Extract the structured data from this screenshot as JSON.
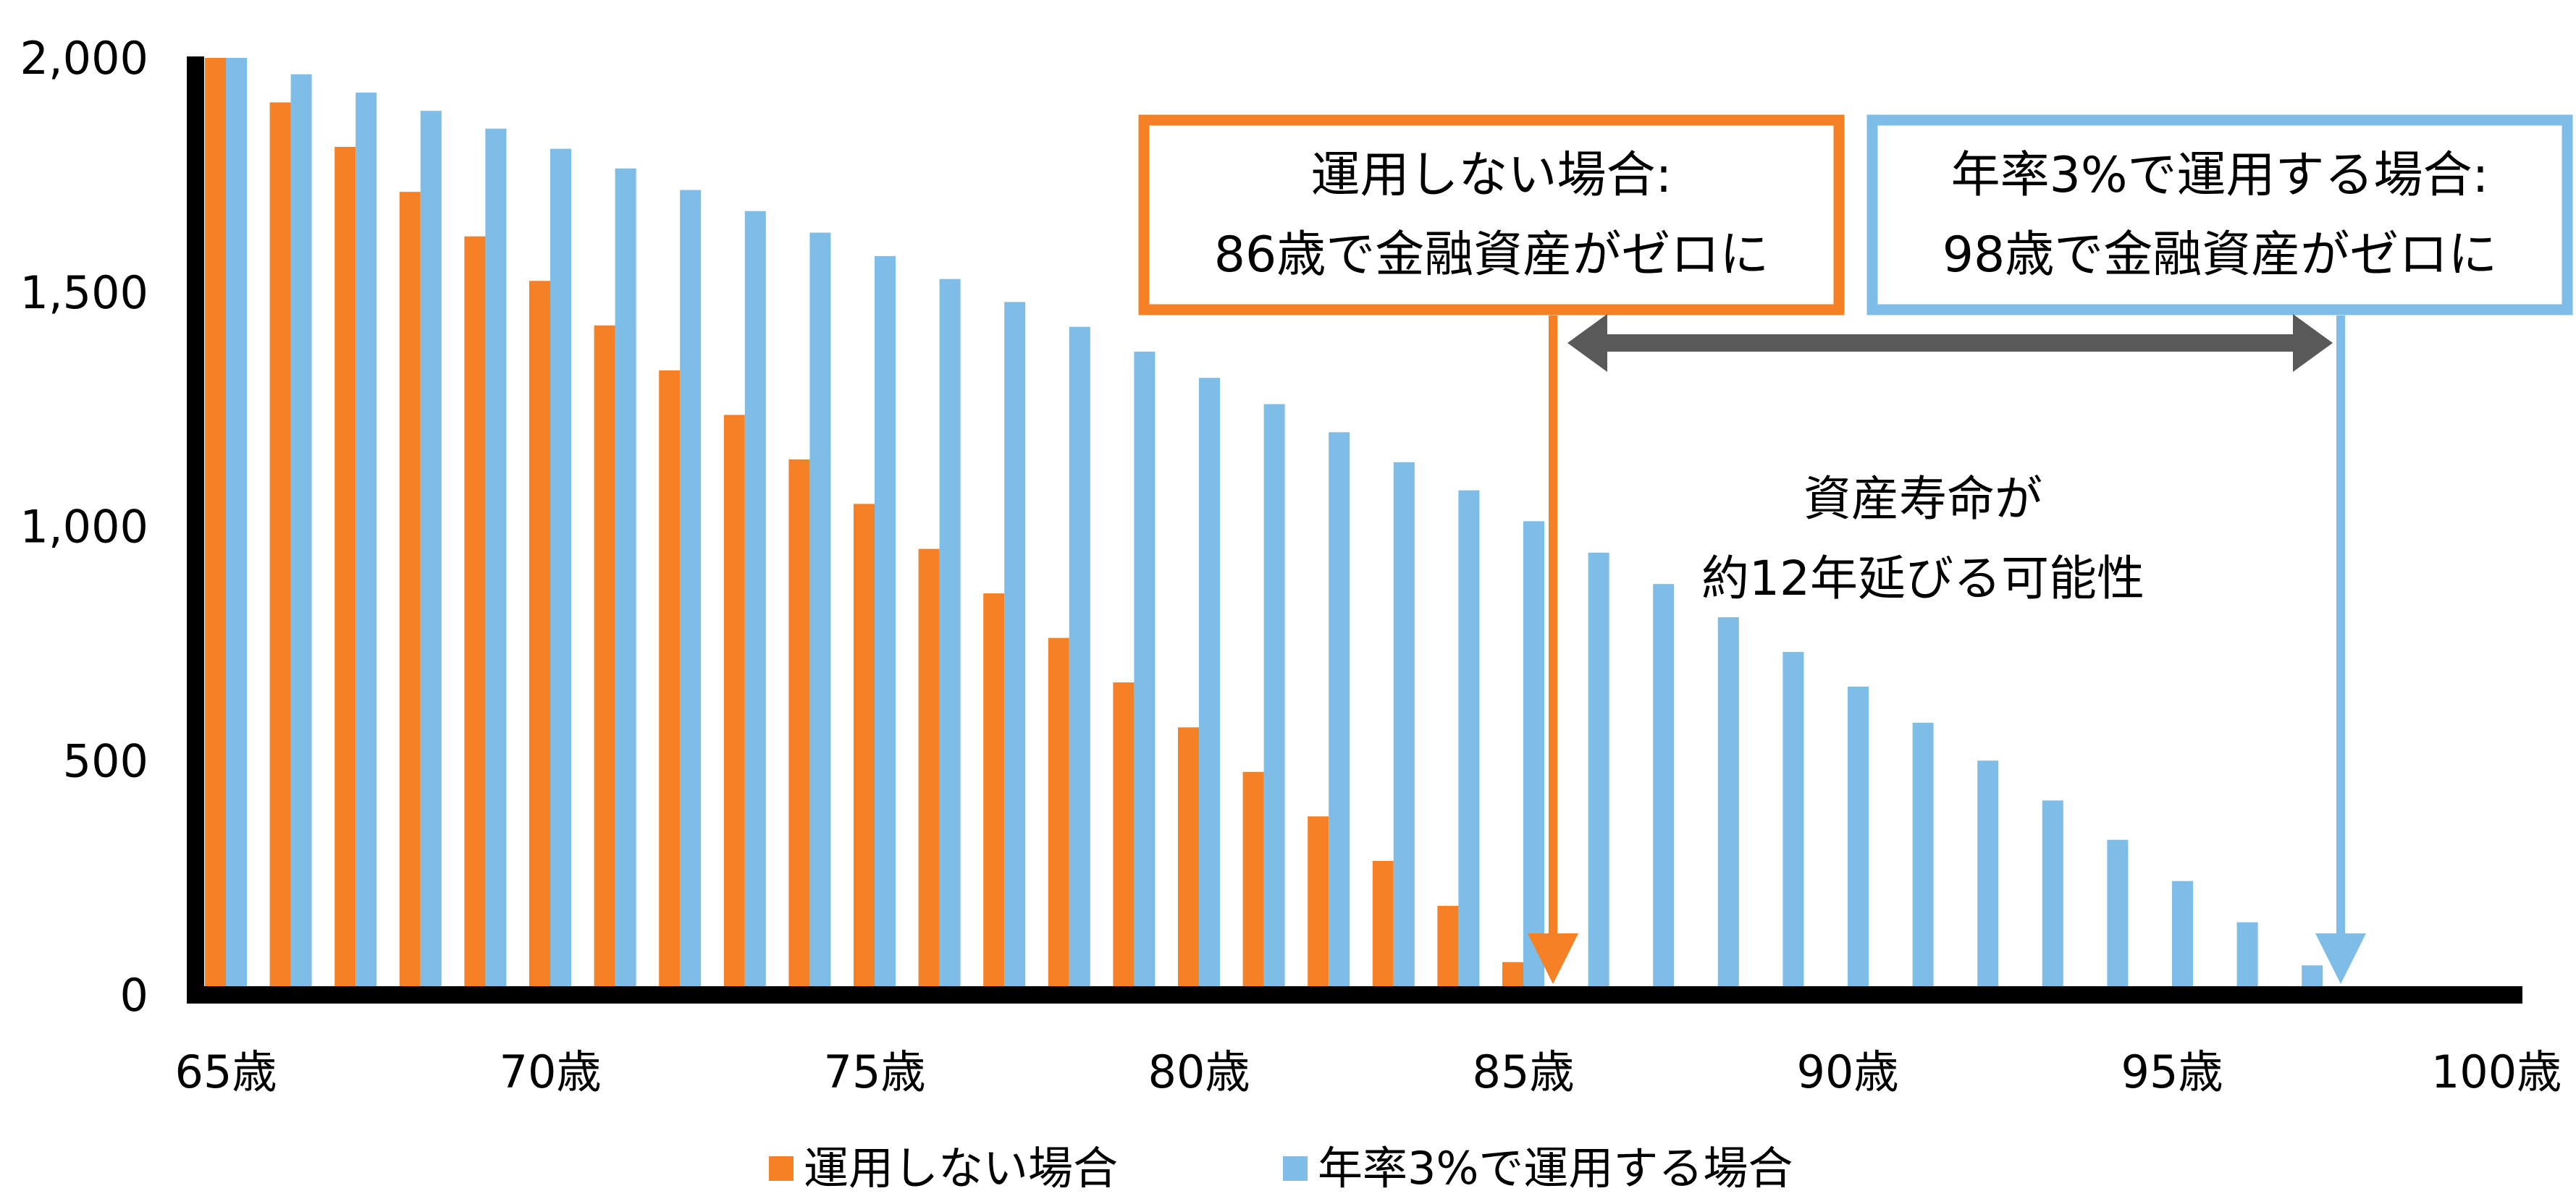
{
  "chart_data": {
    "type": "bar",
    "categories": [
      "65歳",
      "66歳",
      "67歳",
      "68歳",
      "69歳",
      "70歳",
      "71歳",
      "72歳",
      "73歳",
      "74歳",
      "75歳",
      "76歳",
      "77歳",
      "78歳",
      "79歳",
      "80歳",
      "81歳",
      "82歳",
      "83歳",
      "84歳",
      "85歳",
      "86歳",
      "87歳",
      "88歳",
      "89歳",
      "90歳",
      "91歳",
      "92歳",
      "93歳",
      "94歳",
      "95歳",
      "96歳",
      "97歳",
      "98歳",
      "99歳",
      "100歳"
    ],
    "x_tick_labels": [
      "65歳",
      "70歳",
      "75歳",
      "80歳",
      "85歳",
      "90歳",
      "95歳",
      "100歳"
    ],
    "y_tick_labels": [
      "0",
      "500",
      "1,000",
      "1,500",
      "2,000"
    ],
    "ylim": [
      0,
      2000
    ],
    "grid": false,
    "legend_position": "bottom",
    "series": [
      {
        "name": "運用しない場合",
        "color": "#F58025",
        "values": [
          2000,
          1905,
          1810,
          1714,
          1619,
          1524,
          1429,
          1333,
          1238,
          1143,
          1048,
          952,
          857,
          762,
          667,
          571,
          476,
          381,
          286,
          190,
          70,
          0,
          0,
          0,
          0,
          0,
          0,
          0,
          0,
          0,
          0,
          0,
          0,
          0,
          0,
          0
        ]
      },
      {
        "name": "年率3%で運用する場合",
        "color": "#7DBDE8",
        "values": [
          2000,
          1965,
          1926,
          1887,
          1849,
          1806,
          1764,
          1718,
          1673,
          1627,
          1577,
          1528,
          1479,
          1426,
          1373,
          1317,
          1261,
          1201,
          1137,
          1077,
          1011,
          944,
          877,
          806,
          732,
          658,
          581,
          500,
          415,
          331,
          243,
          155,
          63,
          0,
          0,
          0
        ]
      }
    ],
    "annotations": {
      "no_invest": {
        "line1": "運用しない場合:",
        "line2": "86歳で金融資産がゼロに",
        "color": "#F58025",
        "age": 86
      },
      "invest": {
        "line1": "年率3%で運用する場合:",
        "line2": "98歳で金融資産がゼロに",
        "color": "#7DBDE8",
        "age": 98
      },
      "gap": {
        "line1": "資産寿命が",
        "line2": "約12年延びる可能性",
        "color": "#595959"
      }
    }
  }
}
